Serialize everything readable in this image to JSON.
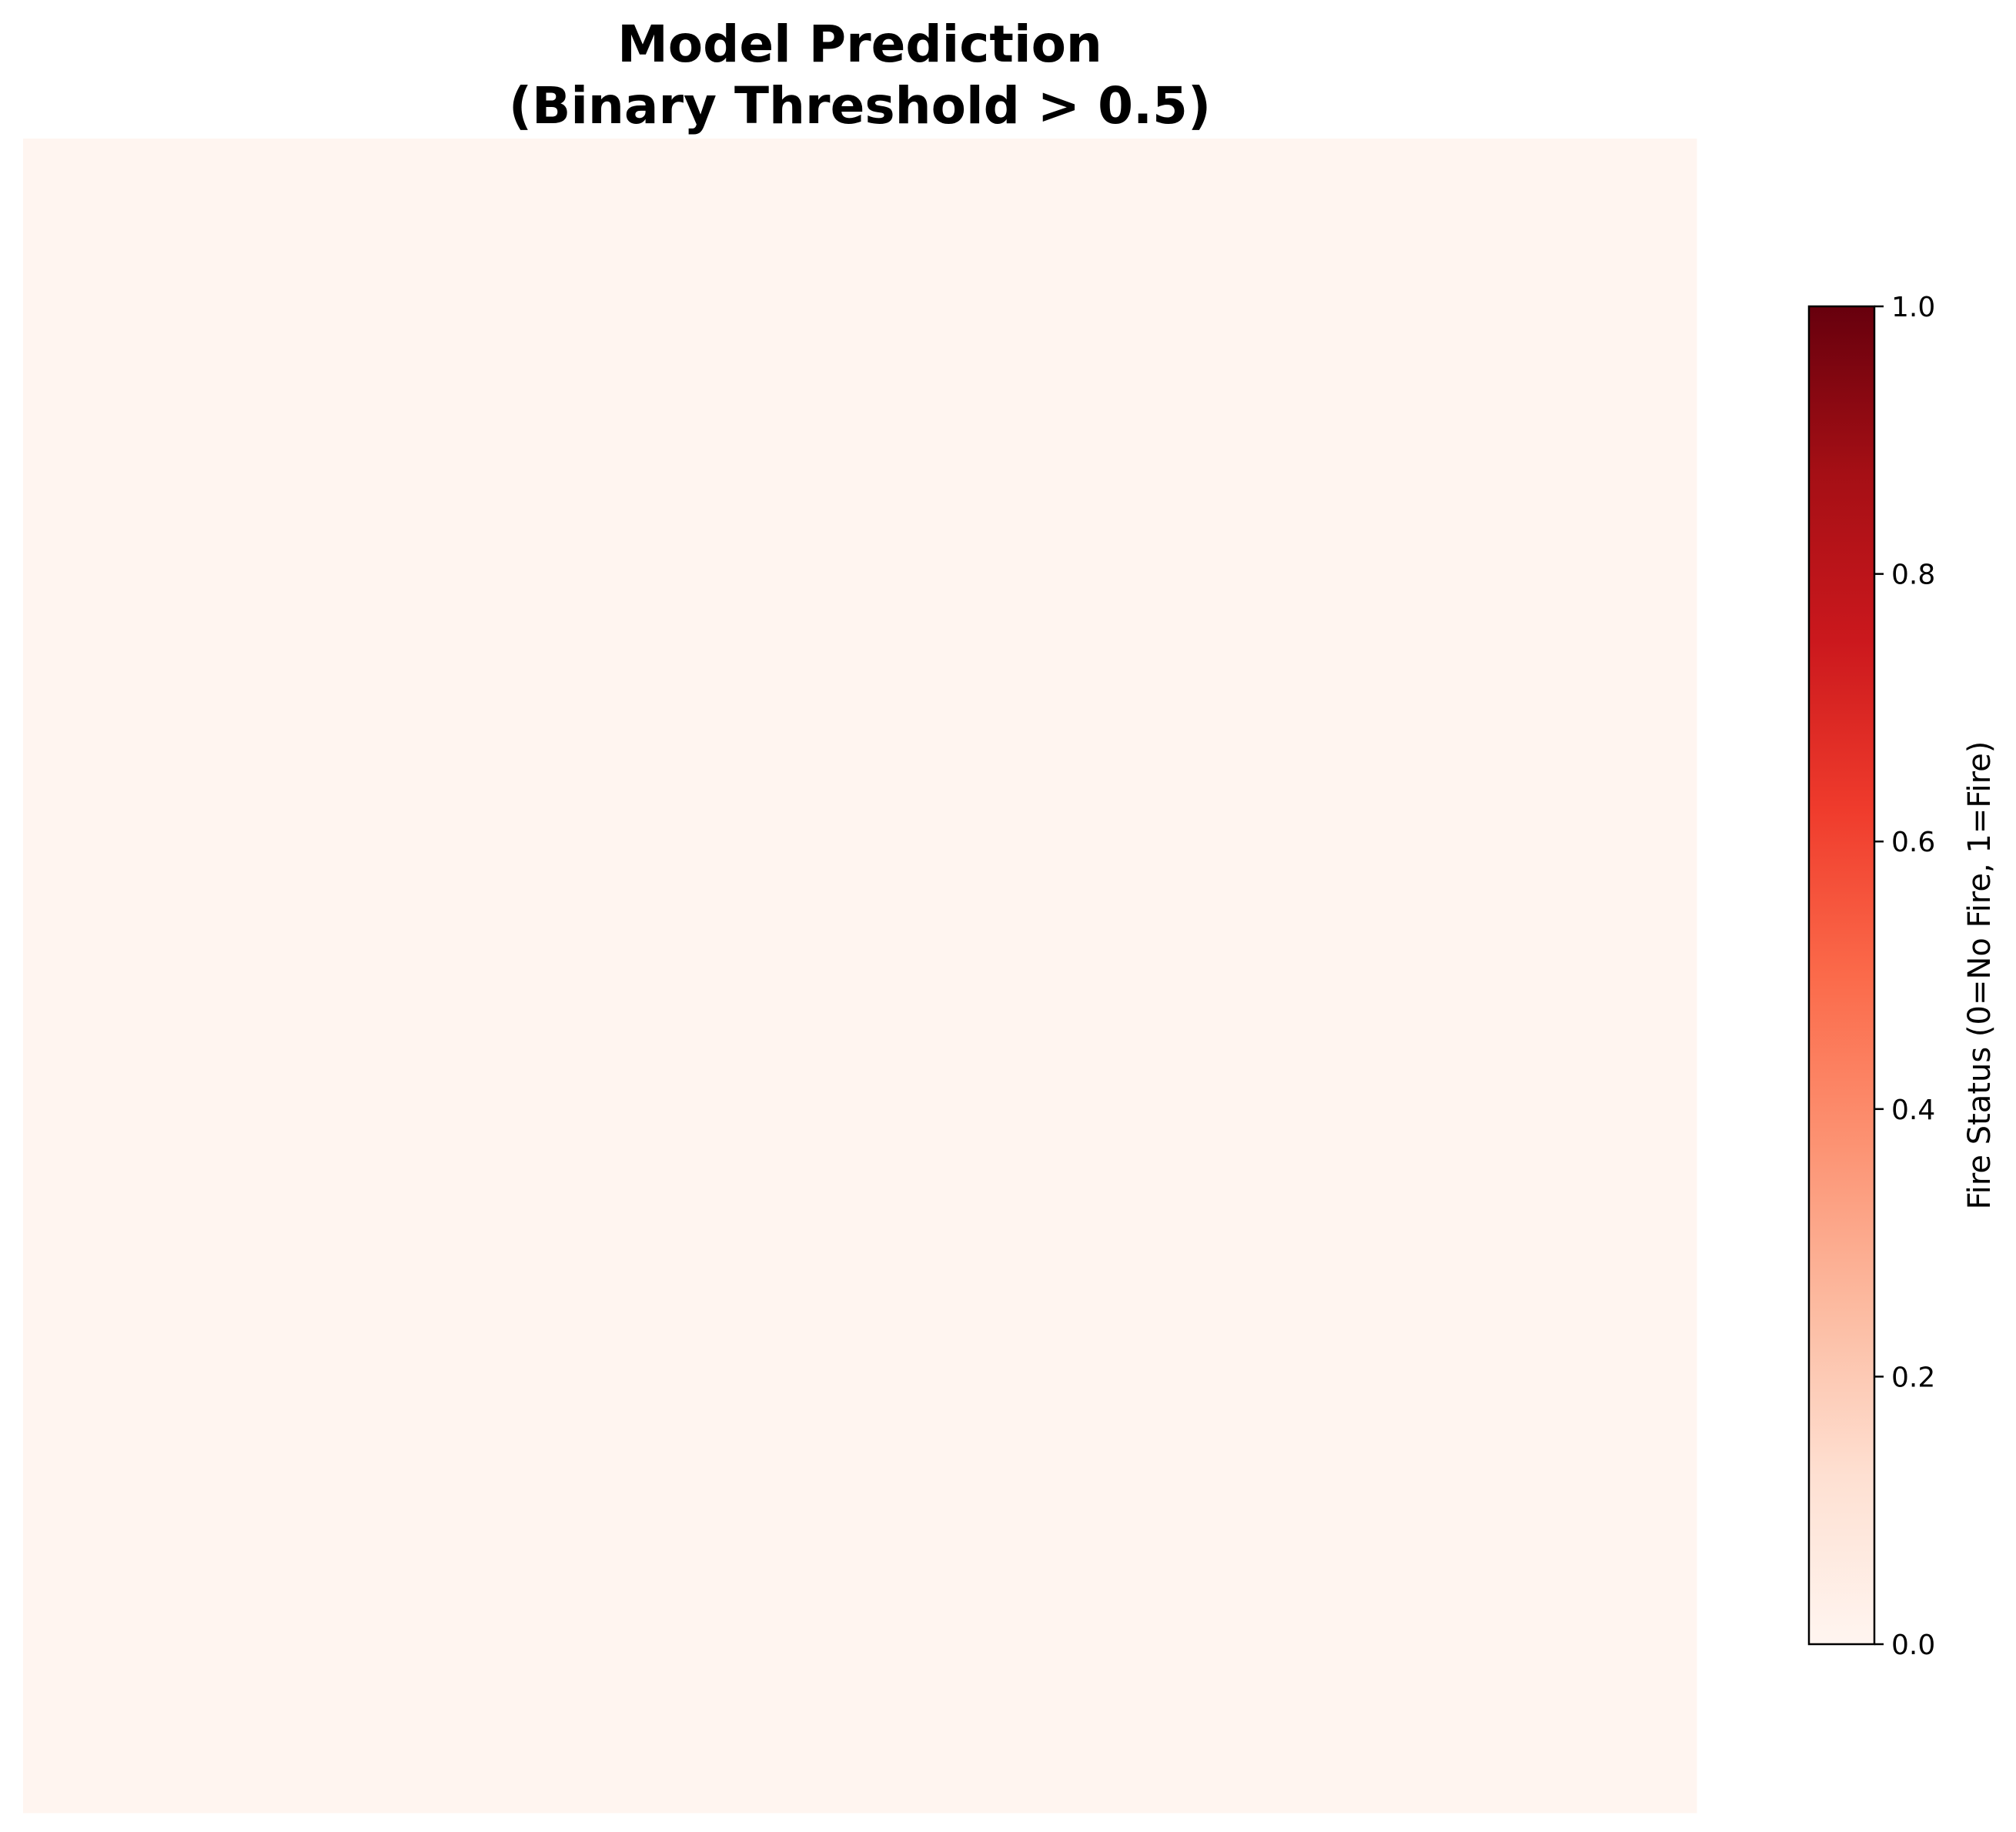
{
  "chart_data": {
    "type": "heatmap",
    "title_lines": [
      "Model Prediction",
      "(Binary Threshold > 0.5)"
    ],
    "xlabel": "",
    "ylabel": "",
    "values": [
      [
        0
      ]
    ],
    "colorbar": {
      "label": "Fire Status (0=No Fire, 1=Fire)",
      "range": [
        0,
        1
      ],
      "ticks": [
        "0.0",
        "0.2",
        "0.4",
        "0.6",
        "0.8",
        "1.0"
      ],
      "colormap": "Reds",
      "colors": [
        "#fff5f0",
        "#fee0d2",
        "#fcbba1",
        "#fc9272",
        "#fb6a4a",
        "#ef3b2c",
        "#cb181d",
        "#a50f15",
        "#67000d"
      ]
    }
  }
}
